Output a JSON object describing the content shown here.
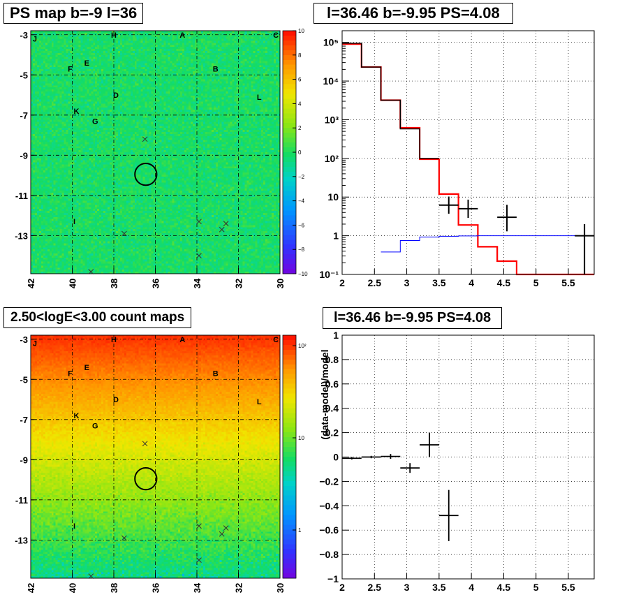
{
  "panels": {
    "ps_map": {
      "title": "PS map b=-9 l=36"
    },
    "spectrum": {
      "title": "l=36.46 b=-9.95 PS=4.08"
    },
    "count_map": {
      "title": "2.50<logE<3.00 count maps"
    },
    "residual": {
      "title": "l=36.46 b=-9.95 PS=4.08"
    }
  },
  "chart_data": [
    {
      "type": "heatmap",
      "name": "PS map",
      "title": "PS map b=-9 l=36",
      "x_ticks": [
        "42",
        "40",
        "38",
        "36",
        "34",
        "32",
        "30"
      ],
      "x_range": [
        42,
        30
      ],
      "y_ticks": [
        "-3",
        "-5",
        "-7",
        "-9",
        "-11",
        "-13"
      ],
      "y_range": [
        -2.8,
        -14.9
      ],
      "colorbar_ticks": [
        "10",
        "8",
        "6",
        "4",
        "2",
        "0",
        "−2",
        "−4",
        "−6",
        "−8",
        "−10"
      ],
      "colorbar_range": [
        -10,
        10
      ],
      "typical_value": 0,
      "source_labels": [
        {
          "text": "J",
          "l": 41.8,
          "b": -3.2
        },
        {
          "text": "H",
          "l": 38.0,
          "b": -3.0
        },
        {
          "text": "A",
          "l": 34.7,
          "b": -3.0
        },
        {
          "text": "C",
          "l": 30.2,
          "b": -3.0
        },
        {
          "text": "E",
          "l": 39.3,
          "b": -4.4
        },
        {
          "text": "F",
          "l": 40.1,
          "b": -4.7
        },
        {
          "text": "B",
          "l": 33.1,
          "b": -4.7
        },
        {
          "text": "D",
          "l": 37.9,
          "b": -6.0
        },
        {
          "text": "L",
          "l": 31.0,
          "b": -6.1
        },
        {
          "text": "K",
          "l": 39.8,
          "b": -6.8
        },
        {
          "text": "G",
          "l": 38.9,
          "b": -7.3
        },
        {
          "text": "I",
          "l": 39.9,
          "b": -12.3
        }
      ],
      "crosses": [
        {
          "l": 36.5,
          "b": -8.2
        },
        {
          "l": 37.5,
          "b": -12.9
        },
        {
          "l": 33.9,
          "b": -12.3
        },
        {
          "l": 32.6,
          "b": -12.4
        },
        {
          "l": 32.8,
          "b": -12.7
        },
        {
          "l": 33.9,
          "b": -14.0
        },
        {
          "l": 39.1,
          "b": -14.8
        }
      ],
      "circle": {
        "l": 36.46,
        "b": -9.95,
        "radius_deg": 0.5
      }
    },
    {
      "type": "line",
      "name": "spectrum",
      "title": "l=36.46 b=-9.95 PS=4.08",
      "x_ticks": [
        "2",
        "2.5",
        "3",
        "3.5",
        "4",
        "4.5",
        "5",
        "5.5"
      ],
      "x_range": [
        2,
        5.9
      ],
      "y_scale": "log",
      "y_ticks": [
        "10⁻¹",
        "1",
        "10",
        "10²",
        "10³",
        "10⁴",
        "10⁵"
      ],
      "y_range": [
        0.1,
        200000
      ],
      "grid": true,
      "series": [
        {
          "color": "#ff0000",
          "style": "step",
          "edges": [
            2.0,
            2.3,
            2.6,
            2.9,
            3.2,
            3.5,
            3.8,
            4.1,
            4.4,
            4.7,
            5.0,
            5.9
          ],
          "values": [
            90000,
            23000,
            3200,
            620,
            95,
            12,
            1.9,
            0.52,
            0.22,
            0.1,
            0.1
          ]
        },
        {
          "color": "#000000",
          "style": "step",
          "edges": [
            2.0,
            2.3,
            2.6,
            2.9,
            3.2,
            3.5
          ],
          "values": [
            95000,
            23000,
            3200,
            580,
            100
          ]
        },
        {
          "color": "#0000ff",
          "style": "step",
          "edges": [
            2.6,
            2.9,
            3.2,
            3.5,
            3.8,
            4.1,
            4.4,
            4.7,
            5.0,
            5.9
          ],
          "values": [
            0.38,
            0.75,
            0.93,
            0.97,
            0.99,
            1.0,
            1.0,
            1.0,
            1.0
          ]
        },
        {
          "color": "#000000",
          "style": "points",
          "points": [
            {
              "x": 3.65,
              "y": 6.2,
              "xerr": 0.15,
              "ylo": 3.7,
              "yhi": 10.3
            },
            {
              "x": 3.95,
              "y": 5.0,
              "xerr": 0.15,
              "ylo": 2.9,
              "yhi": 8.6
            },
            {
              "x": 4.55,
              "y": 3.0,
              "xerr": 0.15,
              "ylo": 1.3,
              "yhi": 6.3
            },
            {
              "x": 5.75,
              "y": 1.0,
              "xerr": 0.15,
              "ylo": 0.1,
              "yhi": 2.0
            }
          ]
        }
      ]
    },
    {
      "type": "heatmap",
      "name": "count map",
      "title": "2.50<logE<3.00 count maps",
      "x_ticks": [
        "42",
        "40",
        "38",
        "36",
        "34",
        "32",
        "30"
      ],
      "x_range": [
        42,
        30
      ],
      "y_ticks": [
        "-3",
        "-5",
        "-7",
        "-9",
        "-11",
        "-13"
      ],
      "y_range": [
        -2.8,
        -14.9
      ],
      "colorbar_ticks": [
        "10²",
        "10",
        "1"
      ],
      "colorbar_scale": "log",
      "colorbar_range": [
        0.3,
        130
      ],
      "gradient": "counts decrease from about 100 near b=-3 to about 5 near b=-14"
    },
    {
      "type": "scatter",
      "name": "residual",
      "title": "l=36.46 b=-9.95 PS=4.08",
      "ylabel": "(data-model)/model",
      "x_ticks": [
        "2",
        "2.5",
        "3",
        "3.5",
        "4",
        "4.5",
        "5",
        "5.5"
      ],
      "x_range": [
        2,
        5.9
      ],
      "y_ticks": [
        "−1",
        "−0.8",
        "−0.6",
        "−0.4",
        "−0.2",
        "0",
        "0.2",
        "0.4",
        "0.6",
        "0.8",
        "1"
      ],
      "y_range": [
        -1,
        1
      ],
      "grid": true,
      "points": [
        {
          "x": 2.15,
          "y": -0.01,
          "xerr": 0.15,
          "yerr": 0.01
        },
        {
          "x": 2.45,
          "y": 0.0,
          "xerr": 0.15,
          "yerr": 0.01
        },
        {
          "x": 2.75,
          "y": 0.005,
          "xerr": 0.15,
          "yerr": 0.02
        },
        {
          "x": 3.05,
          "y": -0.09,
          "xerr": 0.15,
          "yerr": 0.04
        },
        {
          "x": 3.35,
          "y": 0.1,
          "xerr": 0.15,
          "yerr": 0.1
        },
        {
          "x": 3.65,
          "y": -0.48,
          "xerr": 0.15,
          "yerr": 0.21
        }
      ]
    }
  ]
}
